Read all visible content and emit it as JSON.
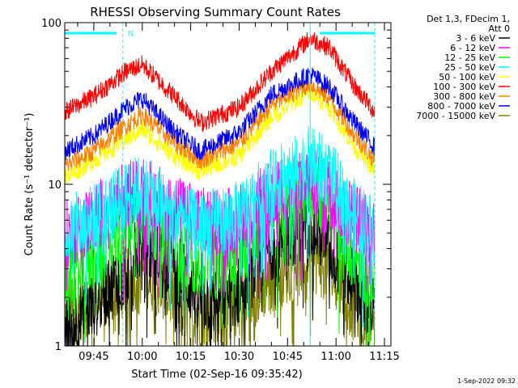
{
  "chart_data": {
    "type": "line",
    "title": "RHESSI Observing Summary Count Rates",
    "xlabel": "Start Time (02-Sep-16 09:35:42)",
    "ylabel": "Count Rate (s⁻¹ detector⁻¹)",
    "y_scale": "log",
    "ylim": [
      1,
      100
    ],
    "y_ticks": [
      {
        "value": 1,
        "label": "1"
      },
      {
        "value": 10,
        "label": "10"
      },
      {
        "value": 100,
        "label": "100"
      }
    ],
    "x_ticks": [
      {
        "minute": 105,
        "label": "09:45"
      },
      {
        "minute": 120,
        "label": "10:00"
      },
      {
        "minute": 135,
        "label": "10:15"
      },
      {
        "minute": 150,
        "label": "10:30"
      },
      {
        "minute": 165,
        "label": "10:45"
      },
      {
        "minute": 180,
        "label": "11:00"
      },
      {
        "minute": 195,
        "label": "11:15"
      }
    ],
    "xlim_minutes_after_0800": [
      96,
      197
    ],
    "legend_header": [
      "Det 1,3, FDecim 1,",
      "Att 0"
    ],
    "legend_position": "right",
    "markers": {
      "night_label": "N",
      "night_start": "09:36",
      "night_end": "09:54",
      "day_start": "10:55",
      "day_end": "11:12",
      "vertical_lines": [
        "09:36",
        "09:54",
        "10:52",
        "11:12"
      ]
    },
    "series": [
      {
        "name": "3 - 6 keV",
        "color": "#000000",
        "shape": [
          1.2,
          1.8,
          3.0,
          4.5,
          3.2,
          1.9,
          2.2,
          4.2,
          6.0,
          4.0,
          2.6,
          1.6
        ]
      },
      {
        "name": "6 - 12 keV",
        "color": "#ff00ff",
        "shape": [
          4.8,
          6.2,
          8.5,
          9.0,
          7.0,
          5.8,
          6.2,
          8.5,
          10.5,
          9.0,
          6.5,
          5.0
        ]
      },
      {
        "name": "12 - 25 keV",
        "color": "#00ff00",
        "shape": [
          2.6,
          3.6,
          5.5,
          6.8,
          4.3,
          3.2,
          3.8,
          6.8,
          9.8,
          7.2,
          3.8,
          2.4
        ]
      },
      {
        "name": "25 - 50 keV",
        "color": "#00ffff",
        "shape": [
          5.0,
          6.2,
          8.5,
          9.5,
          6.4,
          5.4,
          6.4,
          10.0,
          14.0,
          11.5,
          6.8,
          5.2
        ]
      },
      {
        "name": "50 - 100 keV",
        "color": "#ffff00",
        "shape": [
          11.0,
          14.0,
          19.0,
          22.0,
          15.0,
          12.0,
          15.0,
          26.0,
          38.0,
          30.0,
          18.0,
          12.0
        ]
      },
      {
        "name": "100 - 300 keV",
        "color": "#ff0000",
        "shape": [
          28.0,
          35.0,
          50.0,
          55.0,
          35.0,
          24.0,
          30.0,
          50.0,
          80.0,
          70.0,
          42.0,
          28.0
        ]
      },
      {
        "name": "300 - 800 keV",
        "color": "#ff8000",
        "shape": [
          13.0,
          16.0,
          23.0,
          27.0,
          18.0,
          14.0,
          18.0,
          31.0,
          42.0,
          34.0,
          21.0,
          14.0
        ]
      },
      {
        "name": "800 - 7000 keV",
        "color": "#0000ff",
        "shape": [
          16.0,
          20.0,
          30.0,
          34.0,
          21.0,
          16.0,
          21.0,
          36.0,
          48.0,
          40.0,
          25.0,
          17.0
        ]
      },
      {
        "name": "7000 - 15000 keV",
        "color": "#808000",
        "shape": [
          1.5,
          2.0,
          2.4,
          3.0,
          2.0,
          1.6,
          1.8,
          2.6,
          3.6,
          3.0,
          1.8,
          1.4
        ]
      }
    ],
    "series_times": [
      "09:36",
      "09:45",
      "09:55",
      "10:00",
      "10:10",
      "10:18",
      "10:30",
      "10:40",
      "10:52",
      "10:58",
      "11:05",
      "11:12"
    ]
  },
  "footer": {
    "timestamp": "1-Sep-2022 09:32"
  }
}
